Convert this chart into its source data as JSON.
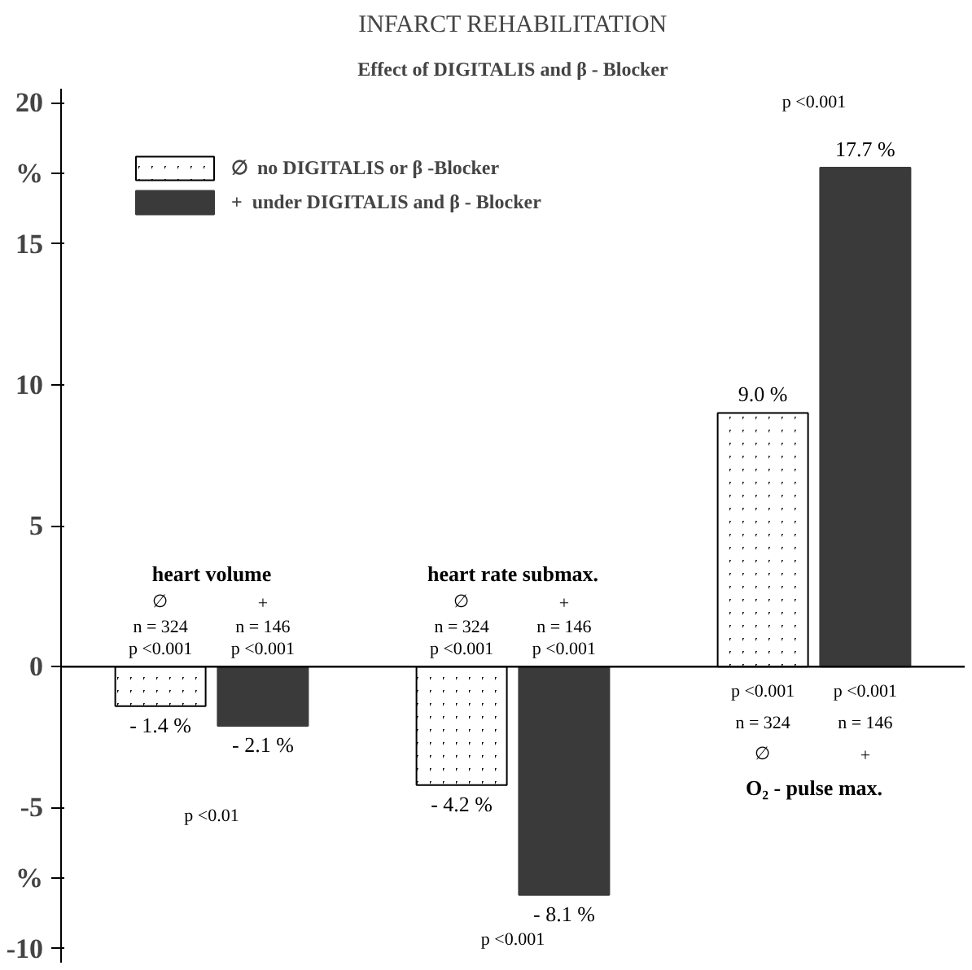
{
  "chart_data": {
    "type": "bar",
    "title": "INFARCT REHABILITATION",
    "subtitle": "Effect of DIGITALIS and β - Blocker",
    "categories": [
      "heart volume",
      "heart rate submax.",
      "O₂ - pulse max."
    ],
    "series": [
      {
        "name": "∅  no DIGITALIS or β -Blocker",
        "color": "#000000",
        "values": [
          -1.4,
          -4.2,
          9.0
        ],
        "value_labels": [
          "- 1.4 %",
          "- 4.2 %",
          "9.0 %"
        ]
      },
      {
        "name": "+  under DIGITALIS and β - Blocker",
        "color": "#3a3a3a",
        "values": [
          -2.1,
          -8.1,
          17.7
        ],
        "value_labels": [
          "- 2.1 %",
          "- 8.1 %",
          "17.7 %"
        ]
      }
    ],
    "ylim": [
      -10.5,
      20.5
    ],
    "yticks": [
      -10,
      -5,
      {
        "value": -7.5,
        "label": "%"
      },
      0,
      5,
      10,
      15,
      {
        "value": 17.5,
        "label": "%"
      },
      20
    ],
    "ref_lines": [
      {
        "axis": "y",
        "value": 0
      }
    ],
    "grid": false,
    "legend": "top left",
    "annotations": [
      "∅",
      "+",
      "n = 324",
      "n = 146",
      "p <0.001",
      "p <0.001",
      "p <0.01",
      "∅",
      "+",
      "n = 324",
      "n = 146",
      "p <0.001",
      "p <0.001",
      "p <0.001",
      "p <0.001",
      "p <0.001",
      "n = 324",
      "n = 146",
      "∅",
      "+",
      "p <0.001"
    ]
  }
}
